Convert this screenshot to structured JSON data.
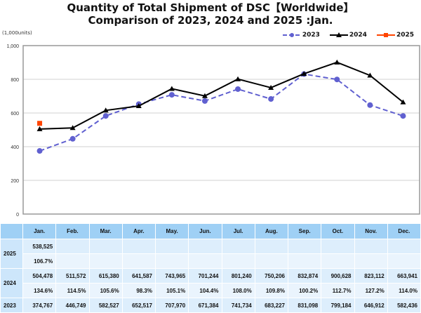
{
  "title_line1": "Quantity of Total Shipment of DSC【Worldwide】",
  "title_line2": "Comparison of 2023, 2024 and 2025 :Jan.",
  "unit_label": "(1,000units)",
  "legend": [
    {
      "label": "2023",
      "color": "#6060d0",
      "marker": "circle",
      "dash": true
    },
    {
      "label": "2024",
      "color": "#000000",
      "marker": "triangle",
      "dash": false
    },
    {
      "label": "2025",
      "color": "#ff4400",
      "marker": "square",
      "dash": false
    }
  ],
  "y_ticks": [
    "0",
    "200",
    "400",
    "600",
    "800",
    "1,000"
  ],
  "table": {
    "headers": [
      "Jan.",
      "Feb.",
      "Mar.",
      "Apr.",
      "May.",
      "Jun.",
      "Jul.",
      "Aug.",
      "Sep.",
      "Oct.",
      "Nov.",
      "Dec."
    ],
    "rows": [
      {
        "label": "2025",
        "values": [
          "538,525",
          "",
          "",
          "",
          "",
          "",
          "",
          "",
          "",
          "",
          "",
          ""
        ],
        "ratios": [
          "106.7%",
          "",
          "",
          "",
          "",
          "",
          "",
          "",
          "",
          "",
          "",
          ""
        ]
      },
      {
        "label": "2024",
        "values": [
          "504,478",
          "511,572",
          "615,380",
          "641,587",
          "743,965",
          "701,244",
          "801,240",
          "750,206",
          "832,874",
          "900,628",
          "823,112",
          "663,941"
        ],
        "ratios": [
          "134.6%",
          "114.5%",
          "105.6%",
          "98.3%",
          "105.1%",
          "104.4%",
          "108.0%",
          "109.8%",
          "100.2%",
          "112.7%",
          "127.2%",
          "114.0%"
        ]
      },
      {
        "label": "2023",
        "values": [
          "374,767",
          "446,749",
          "582,527",
          "652,517",
          "707,970",
          "671,384",
          "741,734",
          "683,227",
          "831,098",
          "799,184",
          "646,912",
          "582,436"
        ]
      }
    ]
  },
  "chart_data": {
    "type": "line",
    "title": "Quantity of Total Shipment of DSC【Worldwide】 Comparison of 2023, 2024 and 2025 :Jan.",
    "xlabel": "",
    "ylabel": "(1,000units)",
    "ylim": [
      0,
      1000
    ],
    "y_ticks": [
      0,
      200,
      400,
      600,
      800,
      1000
    ],
    "grid": true,
    "legend_position": "top-right",
    "categories": [
      "Jan.",
      "Feb.",
      "Mar.",
      "Apr.",
      "May.",
      "Jun.",
      "Jul.",
      "Aug.",
      "Sep.",
      "Oct.",
      "Nov.",
      "Dec."
    ],
    "series": [
      {
        "name": "2023",
        "color": "#6060d0",
        "values": [
          374.767,
          446.749,
          582.527,
          652.517,
          707.97,
          671.384,
          741.734,
          683.227,
          831.098,
          799.184,
          646.912,
          582.436
        ]
      },
      {
        "name": "2024",
        "color": "#000000",
        "values": [
          504.478,
          511.572,
          615.38,
          641.587,
          743.965,
          701.244,
          801.24,
          750.206,
          832.874,
          900.628,
          823.112,
          663.941
        ]
      },
      {
        "name": "2025",
        "color": "#ff4400",
        "values": [
          538.525,
          null,
          null,
          null,
          null,
          null,
          null,
          null,
          null,
          null,
          null,
          null
        ]
      }
    ]
  }
}
